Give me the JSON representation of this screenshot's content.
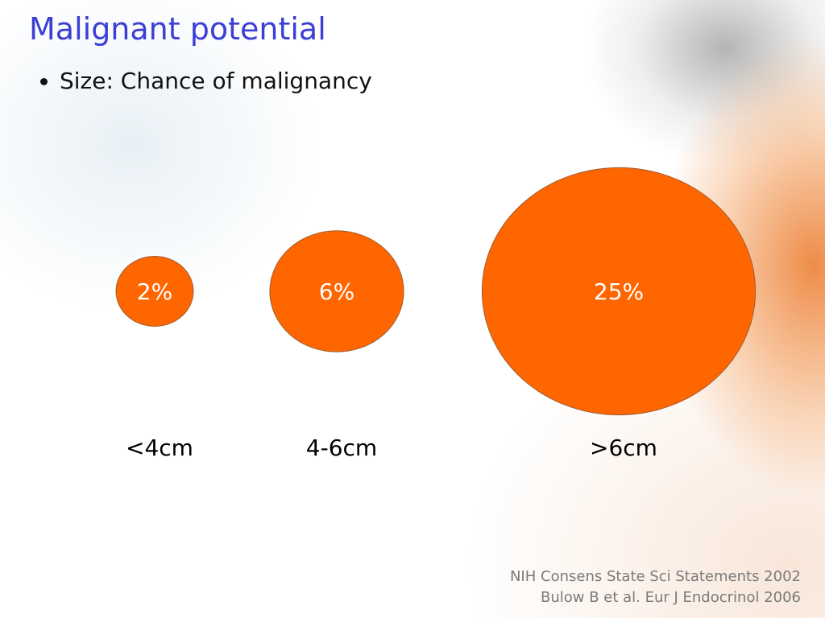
{
  "chart_data": {
    "type": "bubble",
    "title": "Malignant potential",
    "subtitle": "Size: Chance of malignancy",
    "categories": [
      "<4cm",
      "4-6cm",
      ">6cm"
    ],
    "values": [
      2,
      6,
      25
    ],
    "value_labels": [
      "2%",
      "6%",
      "25%"
    ],
    "color": "#ff6600",
    "sources": [
      "NIH Consens State Sci Statements 2002",
      "Bulow B et al. Eur J Endocrinol 2006"
    ]
  }
}
